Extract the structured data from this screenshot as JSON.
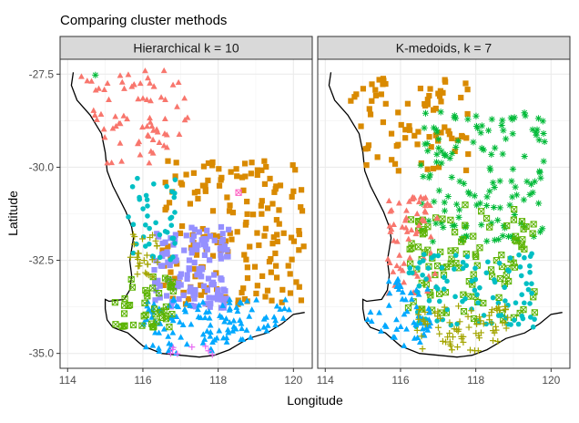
{
  "chart_data": {
    "type": "scatter",
    "title": "Comparing cluster methods",
    "xlabel": "Longitude",
    "ylabel": "Latitude",
    "xlim": [
      113.8,
      120.5
    ],
    "ylim": [
      -35.4,
      -27.1
    ],
    "x_ticks": [
      {
        "value": 114,
        "label": "114"
      },
      {
        "value": 116,
        "label": "116"
      },
      {
        "value": 118,
        "label": "118"
      },
      {
        "value": 120,
        "label": "120"
      }
    ],
    "y_ticks": [
      {
        "value": -27.5,
        "label": "-27.5"
      },
      {
        "value": -30.0,
        "label": "-30.0"
      },
      {
        "value": -32.5,
        "label": "-32.5"
      },
      {
        "value": -35.0,
        "label": "-35.0"
      }
    ],
    "grid": true,
    "legend": "none",
    "colors": {
      "red": "#F8766D",
      "orange": "#D98A00",
      "olive": "#A3A500",
      "green": "#5BB300",
      "teal_green": "#00BA38",
      "cyan": "#00BFC4",
      "blue": "#00A9FF",
      "purple": "#9590FF",
      "magenta": "#E76BF3",
      "pink": "#FF61C3"
    },
    "coastline": [
      [
        114.15,
        -27.45
      ],
      [
        114.1,
        -27.8
      ],
      [
        114.25,
        -28.2
      ],
      [
        114.6,
        -28.6
      ],
      [
        114.9,
        -29.1
      ],
      [
        115.0,
        -29.6
      ],
      [
        115.05,
        -30.1
      ],
      [
        115.2,
        -30.5
      ],
      [
        115.35,
        -30.8
      ],
      [
        115.55,
        -31.2
      ],
      [
        115.7,
        -31.6
      ],
      [
        115.75,
        -31.9
      ],
      [
        115.7,
        -32.2
      ],
      [
        115.65,
        -32.5
      ],
      [
        115.7,
        -32.9
      ],
      [
        115.65,
        -33.3
      ],
      [
        115.5,
        -33.55
      ],
      [
        115.1,
        -33.6
      ],
      [
        115.0,
        -33.55
      ],
      [
        115.0,
        -33.8
      ],
      [
        115.05,
        -34.1
      ],
      [
        115.2,
        -34.3
      ],
      [
        115.6,
        -34.45
      ],
      [
        116.0,
        -34.8
      ],
      [
        116.5,
        -35.0
      ],
      [
        117.0,
        -35.05
      ],
      [
        117.5,
        -35.1
      ],
      [
        117.9,
        -35.05
      ],
      [
        118.3,
        -34.9
      ],
      [
        118.8,
        -34.6
      ],
      [
        119.3,
        -34.45
      ],
      [
        119.7,
        -34.2
      ],
      [
        120.0,
        -33.95
      ],
      [
        120.3,
        -33.9
      ]
    ],
    "facets": [
      {
        "label": "Hierarchical k =  10",
        "series": [
          {
            "color_key": "red",
            "shape": "triangle",
            "box": [
              114.1,
              117.2,
              -29.9,
              -27.4
            ],
            "n": 75
          },
          {
            "color_key": "orange",
            "shape": "square",
            "box": [
              116.5,
              120.3,
              -33.7,
              -29.8
            ],
            "n": 175
          },
          {
            "color_key": "purple",
            "shape": "square",
            "box": [
              116.3,
              118.3,
              -33.8,
              -31.6
            ],
            "n": 130
          },
          {
            "color_key": "blue",
            "shape": "triangle",
            "box": [
              116.0,
              119.9,
              -35.0,
              -33.5
            ],
            "n": 120
          },
          {
            "color_key": "cyan",
            "shape": "circle",
            "box": [
              115.5,
              116.9,
              -32.6,
              -30.2
            ],
            "n": 40
          },
          {
            "color_key": "green",
            "shape": "square-x",
            "box": [
              115.2,
              116.9,
              -34.3,
              -32.9
            ],
            "n": 45
          },
          {
            "color_key": "olive",
            "shape": "plus",
            "box": [
              115.5,
              116.4,
              -33.0,
              -31.8
            ],
            "n": 28
          },
          {
            "color_key": "magenta",
            "shape": "plus",
            "box": [
              116.6,
              118.3,
              -35.05,
              -34.8
            ],
            "n": 8
          },
          {
            "color_key": "teal_green",
            "shape": "asterisk",
            "box": [
              114.6,
              114.8,
              -27.6,
              -27.4
            ],
            "n": 1
          },
          {
            "color_key": "pink",
            "shape": "square-x",
            "box": [
              118.5,
              118.6,
              -30.7,
              -30.6
            ],
            "n": 1
          }
        ]
      },
      {
        "label": "K-medoids, k = 7",
        "series": [
          {
            "color_key": "orange",
            "shape": "square",
            "box": [
              114.2,
              117.8,
              -30.1,
              -27.4
            ],
            "n": 80
          },
          {
            "color_key": "teal_green",
            "shape": "asterisk",
            "box": [
              116.5,
              119.9,
              -32.0,
              -28.5
            ],
            "n": 140
          },
          {
            "color_key": "green",
            "shape": "square-x",
            "box": [
              116.2,
              119.6,
              -34.2,
              -31.0
            ],
            "n": 110
          },
          {
            "color_key": "red",
            "shape": "triangle",
            "box": [
              115.6,
              117.0,
              -33.4,
              -30.8
            ],
            "n": 65
          },
          {
            "color_key": "cyan",
            "shape": "circle",
            "box": [
              116.2,
              119.6,
              -34.3,
              -32.3
            ],
            "n": 95
          },
          {
            "color_key": "blue",
            "shape": "triangle",
            "box": [
              115.0,
              116.8,
              -34.8,
              -33.0
            ],
            "n": 55
          },
          {
            "color_key": "olive",
            "shape": "plus",
            "box": [
              116.4,
              118.9,
              -35.05,
              -33.7
            ],
            "n": 75
          }
        ]
      }
    ]
  }
}
